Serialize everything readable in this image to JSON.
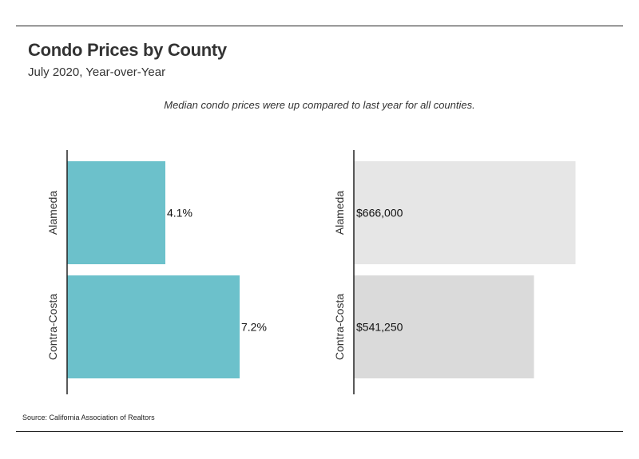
{
  "header": {
    "title": "Condo Prices by County",
    "subtitle": "July 2020, Year-over-Year",
    "note": "Median condo prices were up compared to last year for all counties."
  },
  "footer": {
    "source": "Source:  California Association of Realtors"
  },
  "colors": {
    "pct_bar": "#6cc1cb",
    "price_bar_1": "#e6e6e6",
    "price_bar_2": "#dadada",
    "axis": "#222222",
    "text": "#333333"
  },
  "chart_data": [
    {
      "type": "bar",
      "orientation": "horizontal",
      "categories": [
        "Alameda",
        "Contra-Costa"
      ],
      "values": [
        4.1,
        7.2
      ],
      "value_labels": [
        "4.1%",
        "7.2%"
      ],
      "xlim": [
        0,
        12.5
      ],
      "grid": false
    },
    {
      "type": "bar",
      "orientation": "horizontal",
      "categories": [
        "Alameda",
        "Contra-Costa"
      ],
      "values": [
        666000,
        541250
      ],
      "value_labels": [
        "$666,000",
        "$541,250"
      ],
      "xlim": [
        0,
        720000
      ],
      "grid": false
    }
  ]
}
